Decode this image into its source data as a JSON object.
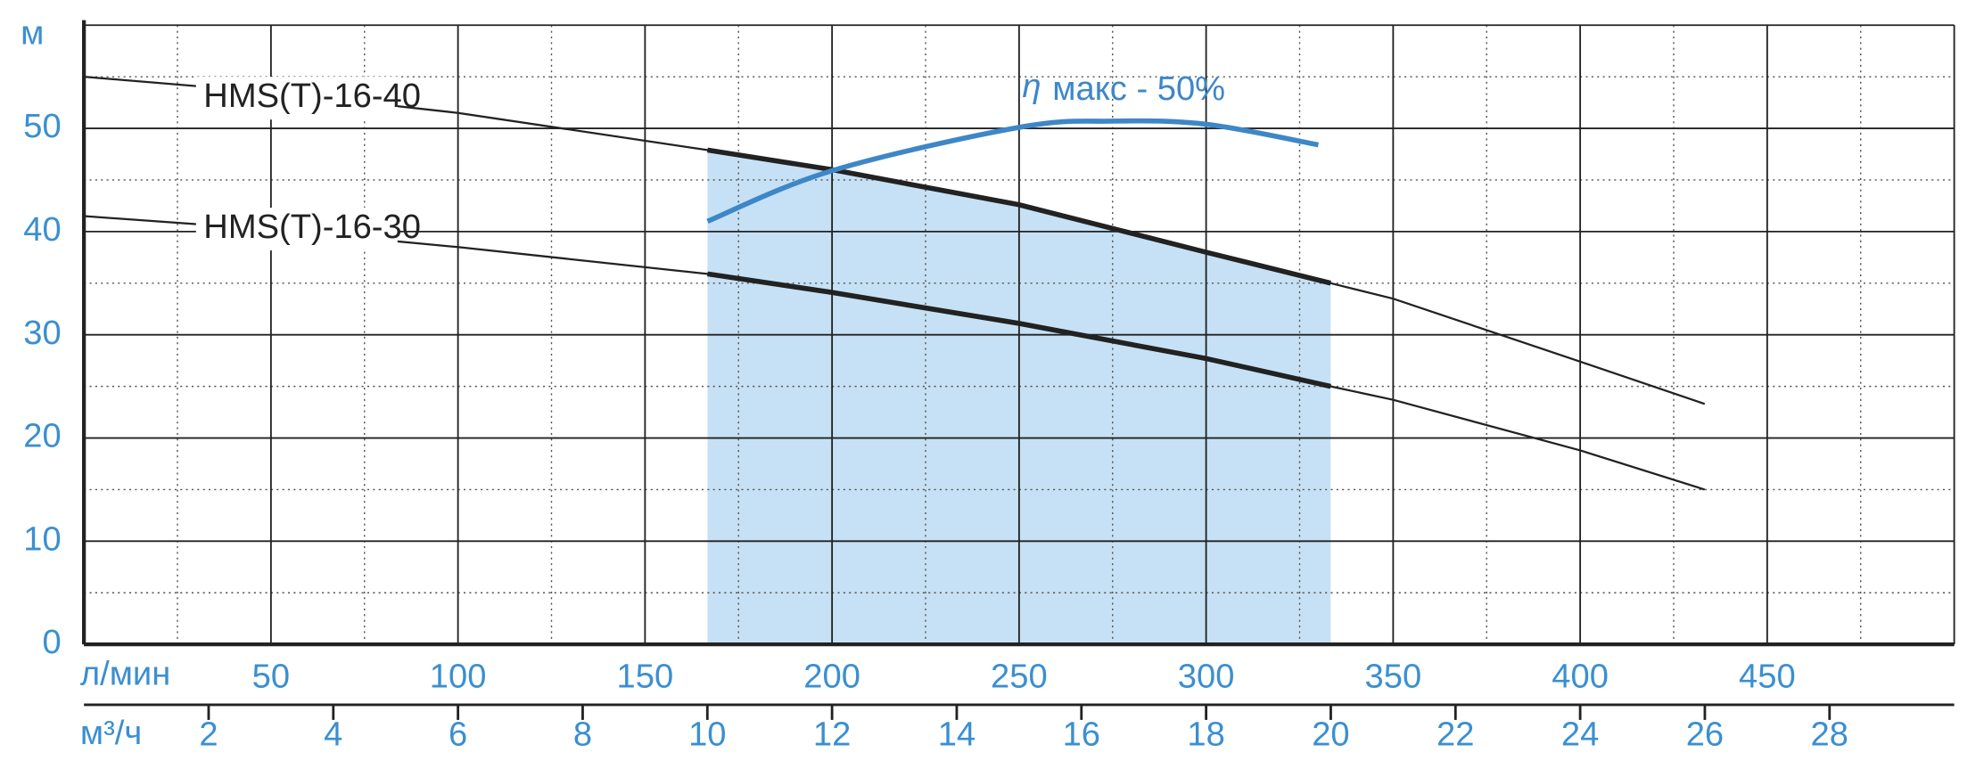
{
  "chart_data": {
    "type": "line",
    "y_label": "м",
    "x_label": "л/мин",
    "x2_label": "м³/ч",
    "xlim": [
      0,
      500
    ],
    "xticks": [
      50,
      100,
      150,
      200,
      250,
      300,
      350,
      400,
      450
    ],
    "xminorticks": [
      25,
      75,
      125,
      175,
      225,
      275,
      325,
      375,
      425,
      475
    ],
    "x2lim": [
      0,
      30
    ],
    "x2ticks": [
      2,
      4,
      6,
      8,
      10,
      12,
      14,
      16,
      18,
      20,
      22,
      24,
      26,
      28
    ],
    "ylim": [
      0,
      60
    ],
    "yticks": [
      0,
      10,
      20,
      30,
      40,
      50
    ],
    "yminorticks": [
      5,
      15,
      25,
      35,
      45,
      55
    ],
    "grid": true,
    "shaded_range": [
      166.7,
      333.3
    ],
    "shade_color": "#c6e1f5",
    "series": [
      {
        "name": "HMS(T)-16-40",
        "color": "#222222",
        "x": [
          0,
          50,
          100,
          166.7,
          200,
          250,
          300,
          333.3,
          350,
          400,
          433.3
        ],
        "values": [
          55,
          53.5,
          51.5,
          47.9,
          46,
          42.6,
          38,
          35,
          33.5,
          27.4,
          23.3
        ]
      },
      {
        "name": "HMS(T)-16-30",
        "color": "#222222",
        "x": [
          0,
          50,
          100,
          166.7,
          200,
          250,
          300,
          333.3,
          350,
          400,
          433.3
        ],
        "values": [
          41.5,
          40.2,
          38.5,
          35.9,
          34.1,
          31.1,
          27.7,
          25,
          23.7,
          18.8,
          15
        ]
      }
    ],
    "efficiency": {
      "symbol": "η",
      "label": "макс - 50%",
      "color": "#3d87c8",
      "x": [
        166.7,
        200,
        250,
        275,
        300,
        330
      ],
      "values": [
        41,
        45.9,
        50.1,
        50.7,
        50.4,
        48.4
      ]
    }
  }
}
